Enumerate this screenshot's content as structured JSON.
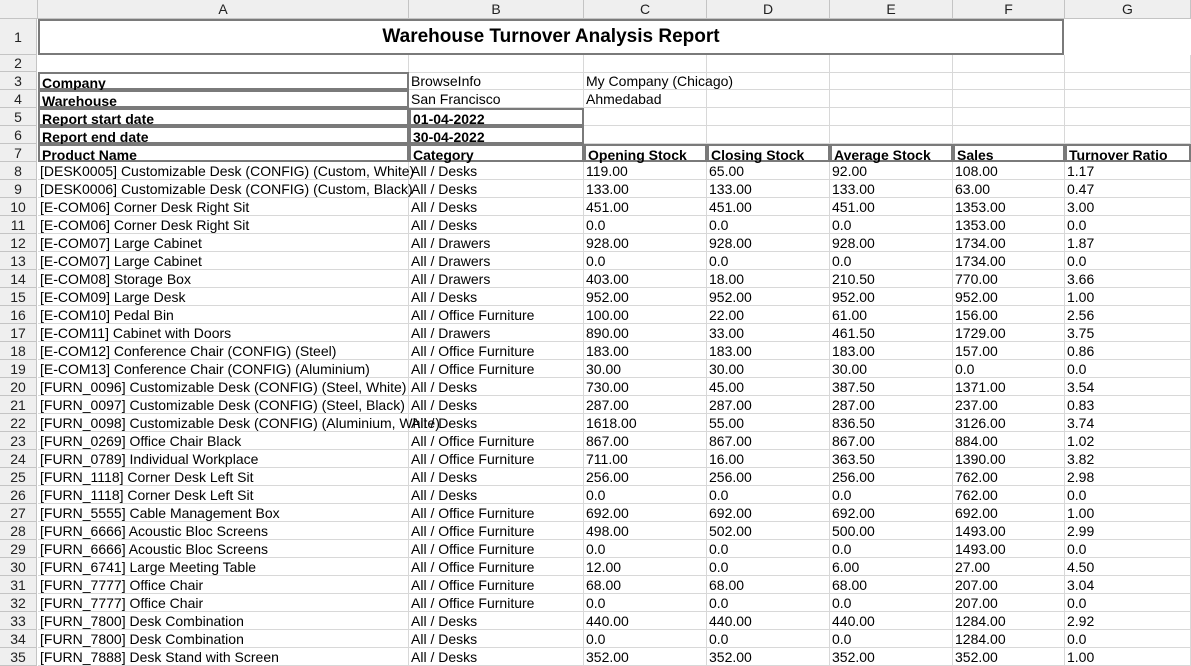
{
  "columns": [
    "A",
    "B",
    "C",
    "D",
    "E",
    "F",
    "G"
  ],
  "report": {
    "title": "Warehouse Turnover Analysis Report",
    "company_label": "Company",
    "company_values": [
      "BrowseInfo",
      "My Company (Chicago)"
    ],
    "warehouse_label": "Warehouse",
    "warehouse_values": [
      "San Francisco",
      "Ahmedabad"
    ],
    "start_label": "Report start date",
    "start_value": "01-04-2022",
    "end_label": "Report end date",
    "end_value": "30-04-2022"
  },
  "table": {
    "headers": [
      "Product Name",
      "Category",
      "Opening Stock",
      "Closing Stock",
      "Average Stock",
      "Sales",
      "Turnover Ratio"
    ],
    "rows": [
      [
        "[DESK0005] Customizable Desk (CONFIG) (Custom, White)",
        "All / Desks",
        "119.00",
        "65.00",
        "92.00",
        "108.00",
        "1.17"
      ],
      [
        "[DESK0006] Customizable Desk (CONFIG) (Custom, Black)",
        "All / Desks",
        "133.00",
        "133.00",
        "133.00",
        "63.00",
        "0.47"
      ],
      [
        "[E-COM06] Corner Desk Right Sit",
        "All / Desks",
        "451.00",
        "451.00",
        "451.00",
        "1353.00",
        "3.00"
      ],
      [
        "[E-COM06] Corner Desk Right Sit",
        "All / Desks",
        "0.0",
        "0.0",
        "0.0",
        "1353.00",
        "0.0"
      ],
      [
        "[E-COM07] Large Cabinet",
        "All / Drawers",
        "928.00",
        "928.00",
        "928.00",
        "1734.00",
        "1.87"
      ],
      [
        "[E-COM07] Large Cabinet",
        "All / Drawers",
        "0.0",
        "0.0",
        "0.0",
        "1734.00",
        "0.0"
      ],
      [
        "[E-COM08] Storage Box",
        "All / Drawers",
        "403.00",
        "18.00",
        "210.50",
        "770.00",
        "3.66"
      ],
      [
        "[E-COM09] Large Desk",
        "All / Desks",
        "952.00",
        "952.00",
        "952.00",
        "952.00",
        "1.00"
      ],
      [
        "[E-COM10] Pedal Bin",
        "All / Office Furniture",
        "100.00",
        "22.00",
        "61.00",
        "156.00",
        "2.56"
      ],
      [
        "[E-COM11] Cabinet with Doors",
        "All / Drawers",
        "890.00",
        "33.00",
        "461.50",
        "1729.00",
        "3.75"
      ],
      [
        "[E-COM12] Conference Chair (CONFIG) (Steel)",
        "All / Office Furniture",
        "183.00",
        "183.00",
        "183.00",
        "157.00",
        "0.86"
      ],
      [
        "[E-COM13] Conference Chair (CONFIG) (Aluminium)",
        "All / Office Furniture",
        "30.00",
        "30.00",
        "30.00",
        "0.0",
        "0.0"
      ],
      [
        "[FURN_0096] Customizable Desk (CONFIG) (Steel, White)",
        "All / Desks",
        "730.00",
        "45.00",
        "387.50",
        "1371.00",
        "3.54"
      ],
      [
        "[FURN_0097] Customizable Desk (CONFIG) (Steel, Black)",
        "All / Desks",
        "287.00",
        "287.00",
        "287.00",
        "237.00",
        "0.83"
      ],
      [
        "[FURN_0098] Customizable Desk (CONFIG) (Aluminium, White)",
        "All / Desks",
        "1618.00",
        "55.00",
        "836.50",
        "3126.00",
        "3.74"
      ],
      [
        "[FURN_0269] Office Chair Black",
        "All / Office Furniture",
        "867.00",
        "867.00",
        "867.00",
        "884.00",
        "1.02"
      ],
      [
        "[FURN_0789] Individual Workplace",
        "All / Office Furniture",
        "711.00",
        "16.00",
        "363.50",
        "1390.00",
        "3.82"
      ],
      [
        "[FURN_1118] Corner Desk Left Sit",
        "All / Desks",
        "256.00",
        "256.00",
        "256.00",
        "762.00",
        "2.98"
      ],
      [
        "[FURN_1118] Corner Desk Left Sit",
        "All / Desks",
        "0.0",
        "0.0",
        "0.0",
        "762.00",
        "0.0"
      ],
      [
        "[FURN_5555] Cable Management Box",
        "All / Office Furniture",
        "692.00",
        "692.00",
        "692.00",
        "692.00",
        "1.00"
      ],
      [
        "[FURN_6666] Acoustic Bloc Screens",
        "All / Office Furniture",
        "498.00",
        "502.00",
        "500.00",
        "1493.00",
        "2.99"
      ],
      [
        "[FURN_6666] Acoustic Bloc Screens",
        "All / Office Furniture",
        "0.0",
        "0.0",
        "0.0",
        "1493.00",
        "0.0"
      ],
      [
        "[FURN_6741] Large Meeting Table",
        "All / Office Furniture",
        "12.00",
        "0.0",
        "6.00",
        "27.00",
        "4.50"
      ],
      [
        "[FURN_7777] Office Chair",
        "All / Office Furniture",
        "68.00",
        "68.00",
        "68.00",
        "207.00",
        "3.04"
      ],
      [
        "[FURN_7777] Office Chair",
        "All / Office Furniture",
        "0.0",
        "0.0",
        "0.0",
        "207.00",
        "0.0"
      ],
      [
        "[FURN_7800] Desk Combination",
        "All / Desks",
        "440.00",
        "440.00",
        "440.00",
        "1284.00",
        "2.92"
      ],
      [
        "[FURN_7800] Desk Combination",
        "All / Desks",
        "0.0",
        "0.0",
        "0.0",
        "1284.00",
        "0.0"
      ],
      [
        "[FURN_7888] Desk Stand with Screen",
        "All / Desks",
        "352.00",
        "352.00",
        "352.00",
        "352.00",
        "1.00"
      ]
    ]
  }
}
